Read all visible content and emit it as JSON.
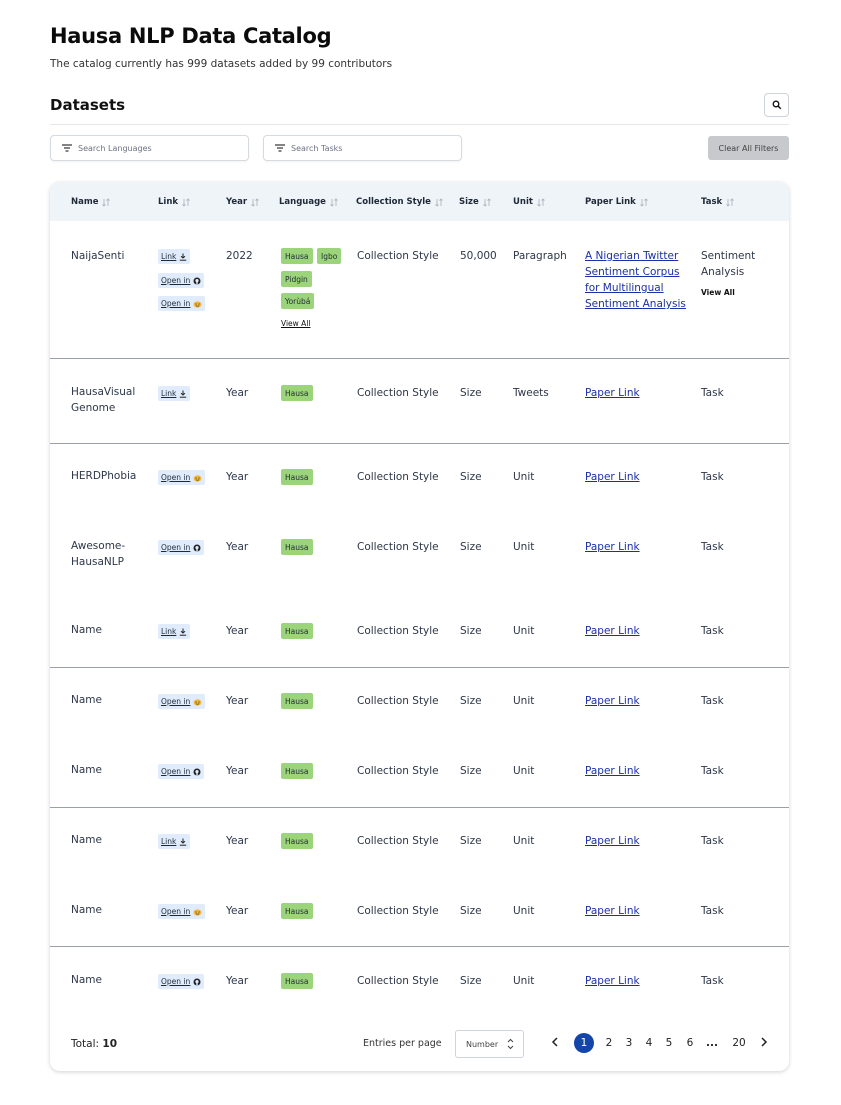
{
  "page": {
    "title": "Hausa NLP Data Catalog",
    "subtitle": "The catalog currently has 999 datasets added by 99 contributors",
    "section_title": "Datasets"
  },
  "filters": {
    "languages_placeholder": "Search Languages",
    "tasks_placeholder": "Search Tasks",
    "clear_label": "Clear All Filters"
  },
  "table": {
    "headers": [
      "Name",
      "Link",
      "Year",
      "Language",
      "Collection Style",
      "Size",
      "Unit",
      "Paper Link",
      "Task"
    ],
    "rows": [
      {
        "name": "NaijaSenti",
        "links": [
          "Link",
          "Open in",
          "Open in"
        ],
        "year": "2022",
        "languages": [
          "Hausa",
          "Igbo",
          "Pidgin",
          "Yorùbá"
        ],
        "languages_view_all": "View All",
        "collection_style": "Collection Style",
        "size": "50,000",
        "unit": "Paragraph",
        "paper_link": "A Nigerian Twitter Sentiment Corpus for Multilingual Sentiment Analysis",
        "task": "Sentiment Analysis",
        "task_view_all": "View All"
      },
      {
        "name": "HausaVisual Genome",
        "link": "Link",
        "year": "Year",
        "language": "Hausa",
        "collection_style": "Collection Style",
        "size": "Size",
        "unit": "Tweets",
        "paper_link": "Paper Link",
        "task": "Task"
      },
      {
        "name": "HERDPhobia",
        "link": "Open in",
        "year": "Year",
        "language": "Hausa",
        "collection_style": "Collection Style",
        "size": "Size",
        "unit": "Unit",
        "paper_link": "Paper Link",
        "task": "Task"
      },
      {
        "name": "Awesome-HausaNLP",
        "link": "Open in",
        "year": "Year",
        "language": "Hausa",
        "collection_style": "Collection Style",
        "size": "Size",
        "unit": "Unit",
        "paper_link": "Paper Link",
        "task": "Task"
      },
      {
        "name": "Name",
        "link": "Link",
        "year": "Year",
        "language": "Hausa",
        "collection_style": "Collection Style",
        "size": "Size",
        "unit": "Unit",
        "paper_link": "Paper Link",
        "task": "Task"
      },
      {
        "name": "Name",
        "link": "Open in",
        "year": "Year",
        "language": "Hausa",
        "collection_style": "Collection Style",
        "size": "Size",
        "unit": "Unit",
        "paper_link": "Paper Link",
        "task": "Task"
      },
      {
        "name": "Name",
        "link": "Open in",
        "year": "Year",
        "language": "Hausa",
        "collection_style": "Collection Style",
        "size": "Size",
        "unit": "Unit",
        "paper_link": "Paper Link",
        "task": "Task"
      },
      {
        "name": "Name",
        "link": "Link",
        "year": "Year",
        "language": "Hausa",
        "collection_style": "Collection Style",
        "size": "Size",
        "unit": "Unit",
        "paper_link": "Paper Link",
        "task": "Task"
      },
      {
        "name": "Name",
        "link": "Open in",
        "year": "Year",
        "language": "Hausa",
        "collection_style": "Collection Style",
        "size": "Size",
        "unit": "Unit",
        "paper_link": "Paper Link",
        "task": "Task"
      },
      {
        "name": "Name",
        "link": "Open in",
        "year": "Year",
        "language": "Hausa",
        "collection_style": "Collection Style",
        "size": "Size",
        "unit": "Unit",
        "paper_link": "Paper Link",
        "task": "Task"
      }
    ]
  },
  "footer": {
    "total_label": "Total:",
    "total_value": "10",
    "entries_label": "Entries per page",
    "entries_select": "Number",
    "pages": [
      "1",
      "2",
      "3",
      "4",
      "5",
      "6",
      "...",
      "20"
    ],
    "current_page": "1"
  },
  "colors": {
    "header_bg": "#eef4f7",
    "language_tag": "#9bd47a",
    "link_tag": "#e0ecfb",
    "paper_link": "#1b2fa8",
    "active_page": "#1346a8",
    "clear_button": "#c7c9cc"
  },
  "icons": {
    "link": "download-icon",
    "open_in_a": "github-icon",
    "open_in_b": "huggingface-icon",
    "sort": "sort-icon",
    "search": "search-icon",
    "filter": "filter-icon"
  }
}
